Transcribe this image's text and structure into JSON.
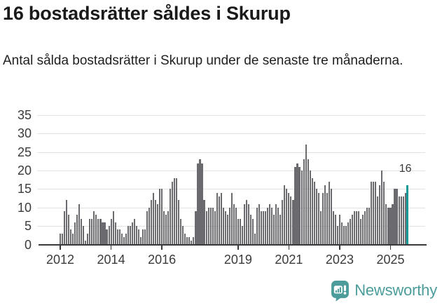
{
  "header": {
    "title": "16 bostadsrätter såldes i Skurup",
    "subtitle": "Antal sålda bostadsrätter i Skurup under de senaste tre månaderna."
  },
  "chart_data": {
    "type": "bar",
    "title": "16 bostadsrätter såldes i Skurup",
    "x_unit": "month",
    "x_start": "2012-01",
    "x_end": "2025-09",
    "values": [
      3,
      3,
      9,
      12,
      8,
      4,
      3,
      6,
      8,
      11,
      7,
      5,
      1,
      3,
      7,
      7,
      9,
      8,
      7,
      7,
      6,
      6,
      4,
      5,
      7,
      9,
      6,
      4,
      4,
      3,
      2,
      3,
      5,
      5,
      6,
      7,
      5,
      4,
      2,
      4,
      4,
      9,
      10,
      12,
      14,
      12,
      11,
      15,
      15,
      9,
      8,
      9,
      15,
      17,
      18,
      18,
      12,
      7,
      5,
      3,
      2,
      2,
      1,
      2,
      9,
      22,
      23,
      22,
      12,
      9,
      10,
      10,
      10,
      9,
      14,
      13,
      14,
      10,
      9,
      8,
      10,
      14,
      11,
      10,
      7,
      7,
      5,
      11,
      12,
      11,
      8,
      7,
      3,
      10,
      11,
      9,
      9,
      9,
      10,
      11,
      10,
      8,
      11,
      10,
      8,
      12,
      16,
      15,
      14,
      13,
      12,
      21,
      22,
      21,
      20,
      23,
      27,
      23,
      20,
      18,
      17,
      15,
      14,
      9,
      14,
      16,
      14,
      17,
      15,
      9,
      8,
      5,
      8,
      6,
      5,
      5,
      6,
      7,
      8,
      9,
      9,
      9,
      7,
      8,
      9,
      10,
      10,
      17,
      17,
      17,
      13,
      16,
      20,
      17,
      11,
      10,
      10,
      11,
      15,
      15,
      13,
      13,
      13,
      14,
      16
    ],
    "highlight_index": 164,
    "highlight_value": 16,
    "highlight_label": "16",
    "ylim": [
      0,
      35
    ],
    "y_ticks": [
      0,
      5,
      10,
      15,
      20,
      25,
      30,
      35
    ],
    "x_ticks": [
      {
        "label": "2012",
        "index": 0
      },
      {
        "label": "2014",
        "index": 24
      },
      {
        "label": "2016",
        "index": 48
      },
      {
        "label": "2019",
        "index": 84
      },
      {
        "label": "2021",
        "index": 108
      },
      {
        "label": "2023",
        "index": 132
      },
      {
        "label": "2025",
        "index": 156
      }
    ],
    "grid": true,
    "legend": null,
    "colors": {
      "bar": "#6b6a6f",
      "highlight": "#199a9a",
      "grid": "#e2e2e2",
      "axis": "#39383d",
      "tick_label": "#3b3b3b"
    }
  },
  "footer": {
    "brand": "Newsworthy",
    "brand_color": "#4b9c9b"
  }
}
